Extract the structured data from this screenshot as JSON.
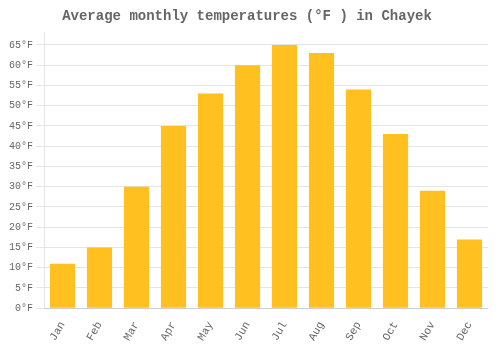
{
  "chart_data": {
    "type": "bar",
    "title": "Average monthly temperatures (°F ) in Chayek",
    "categories": [
      "Jan",
      "Feb",
      "Mar",
      "Apr",
      "May",
      "Jun",
      "Jul",
      "Aug",
      "Sep",
      "Oct",
      "Nov",
      "Dec"
    ],
    "values": [
      11,
      15,
      30,
      45,
      53,
      60,
      65,
      63,
      54,
      43,
      29,
      17
    ],
    "color": "#FFC020",
    "ylim": [
      0,
      68
    ],
    "yticks": [
      {
        "value": 0,
        "label": "0°F"
      },
      {
        "value": 5,
        "label": "5°F"
      },
      {
        "value": 10,
        "label": "10°F"
      },
      {
        "value": 15,
        "label": "15°F"
      },
      {
        "value": 20,
        "label": "20°F"
      },
      {
        "value": 25,
        "label": "25°F"
      },
      {
        "value": 30,
        "label": "30°F"
      },
      {
        "value": 35,
        "label": "35°F"
      },
      {
        "value": 40,
        "label": "40°F"
      },
      {
        "value": 45,
        "label": "45°F"
      },
      {
        "value": 50,
        "label": "50°F"
      },
      {
        "value": 55,
        "label": "55°F"
      },
      {
        "value": 60,
        "label": "60°F"
      },
      {
        "value": 65,
        "label": "65°F"
      }
    ],
    "grid": true
  }
}
